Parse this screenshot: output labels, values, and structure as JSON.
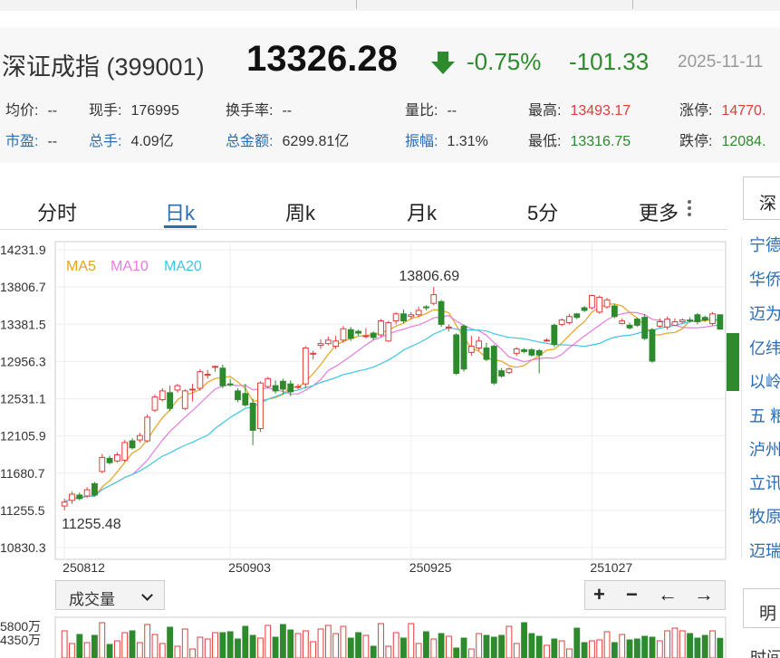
{
  "quote": {
    "name": "深证成指 (399001)",
    "price": "13326.28",
    "change_pct": "-0.75%",
    "change": "-101.33",
    "date": "2025-11-11",
    "up_color": "#e23c3c",
    "down_color": "#2d8a2d",
    "arrow_icon": "down-arrow-icon"
  },
  "stats": {
    "avg_price": {
      "label": "均价:",
      "value": "--"
    },
    "cur_hand": {
      "label": "现手:",
      "value": "176995"
    },
    "turnover": {
      "label": "换手率:",
      "value": "--"
    },
    "vol_ratio": {
      "label": "量比:",
      "value": "--"
    },
    "high": {
      "label": "最高:",
      "value": "13493.17"
    },
    "limit_up": {
      "label": "涨停:",
      "value": "14770."
    },
    "pe": {
      "label": "市盈:",
      "value": "--"
    },
    "total_hand": {
      "label": "总手:",
      "value": "4.09亿"
    },
    "amount": {
      "label": "总金额:",
      "value": "6299.81亿"
    },
    "amplitude": {
      "label": "振幅:",
      "value": "1.31%"
    },
    "low": {
      "label": "最低:",
      "value": "13316.75"
    },
    "limit_down": {
      "label": "跌停:",
      "value": "12084."
    }
  },
  "tabs": [
    "分时",
    "日k",
    "周k",
    "月k",
    "5分",
    "更多"
  ],
  "active_tab": "日k",
  "chart_data": {
    "type": "candlestick",
    "legend": [
      {
        "name": "MA5",
        "color": "#e8a21c"
      },
      {
        "name": "MA10",
        "color": "#e77be0"
      },
      {
        "name": "MA20",
        "color": "#3cc8e3"
      }
    ],
    "y_ticks": [
      "14231.9",
      "13806.7",
      "13381.5",
      "12956.3",
      "12531.1",
      "12105.9",
      "11680.7",
      "11255.5",
      "10830.3"
    ],
    "ylim": [
      10830.3,
      14231.9
    ],
    "x_ticks": [
      "250812",
      "250903",
      "250925",
      "251027"
    ],
    "max_label": "13806.69",
    "min_label": "11255.48",
    "candles": [
      [
        11305,
        11350,
        11255.48,
        11390
      ],
      [
        11370,
        11440,
        11330,
        11470
      ],
      [
        11430,
        11390,
        11370,
        11460
      ],
      [
        11420,
        11490,
        11400,
        11520
      ],
      [
        11560,
        11430,
        11410,
        11580
      ],
      [
        11700,
        11860,
        11680,
        11900
      ],
      [
        11850,
        11800,
        11780,
        11880
      ],
      [
        11820,
        11890,
        11800,
        11920
      ],
      [
        11830,
        12030,
        11810,
        12060
      ],
      [
        12050,
        11970,
        11950,
        12080
      ],
      [
        12060,
        12110,
        12030,
        12140
      ],
      [
        12050,
        12320,
        12030,
        12350
      ],
      [
        12400,
        12550,
        12380,
        12580
      ],
      [
        12520,
        12620,
        12500,
        12650
      ],
      [
        12600,
        12420,
        12390,
        12680
      ],
      [
        12630,
        12680,
        12600,
        12700
      ],
      [
        12420,
        12620,
        12400,
        12640
      ],
      [
        12640,
        12640,
        12500,
        12700
      ],
      [
        12650,
        12840,
        12620,
        12870
      ],
      [
        12800,
        12810,
        12760,
        12860
      ],
      [
        12890,
        12900,
        12840,
        12910
      ],
      [
        12880,
        12680,
        12650,
        12920
      ],
      [
        12700,
        12690,
        12670,
        12760
      ],
      [
        12620,
        12520,
        12490,
        12650
      ],
      [
        12590,
        12460,
        12440,
        12700
      ],
      [
        12480,
        12170,
        12000,
        12530
      ],
      [
        12190,
        12710,
        12150,
        12730
      ],
      [
        12670,
        12760,
        12650,
        12780
      ],
      [
        12680,
        12620,
        12590,
        12740
      ],
      [
        12730,
        12640,
        12580,
        12760
      ],
      [
        12700,
        12610,
        12560,
        12740
      ],
      [
        12660,
        12670,
        12640,
        12700
      ],
      [
        12700,
        13110,
        12650,
        13130
      ],
      [
        13050,
        13050,
        12980,
        13080
      ],
      [
        13140,
        13160,
        13100,
        13210
      ],
      [
        13160,
        13200,
        13140,
        13240
      ],
      [
        13130,
        13190,
        13100,
        13250
      ],
      [
        13200,
        13330,
        13170,
        13360
      ],
      [
        13320,
        13220,
        13190,
        13350
      ],
      [
        13300,
        13280,
        13250,
        13320
      ],
      [
        13240,
        13250,
        13220,
        13340
      ],
      [
        13280,
        13230,
        13200,
        13300
      ],
      [
        13260,
        13420,
        13240,
        13440
      ],
      [
        13190,
        13400,
        13180,
        13420
      ],
      [
        13420,
        13500,
        13380,
        13520
      ],
      [
        13500,
        13420,
        13390,
        13550
      ],
      [
        13470,
        13490,
        13440,
        13520
      ],
      [
        13490,
        13540,
        13460,
        13580
      ],
      [
        13580,
        13570,
        13540,
        13600
      ],
      [
        13620,
        13720,
        13600,
        13806.69
      ],
      [
        13640,
        13380,
        13350,
        13660
      ],
      [
        13340,
        13350,
        13300,
        13380
      ],
      [
        13260,
        12820,
        12800,
        13280
      ],
      [
        13360,
        12870,
        12840,
        13380
      ],
      [
        13060,
        13130,
        13020,
        13250
      ],
      [
        13110,
        13190,
        13080,
        13240
      ],
      [
        13110,
        12980,
        12960,
        13170
      ],
      [
        13130,
        12710,
        12690,
        13150
      ],
      [
        12850,
        12790,
        12770,
        12880
      ],
      [
        12830,
        12870,
        12810,
        12890
      ],
      [
        13050,
        13100,
        13020,
        13120
      ],
      [
        13090,
        13070,
        13050,
        13110
      ],
      [
        13090,
        13030,
        13010,
        13110
      ],
      [
        13080,
        13030,
        12820,
        13100
      ],
      [
        13200,
        13200,
        13180,
        13220
      ],
      [
        13370,
        13150,
        13120,
        13390
      ],
      [
        13380,
        13430,
        13360,
        13450
      ],
      [
        13400,
        13470,
        13380,
        13500
      ],
      [
        13500,
        13460,
        13440,
        13510
      ],
      [
        13570,
        13540,
        13520,
        13590
      ],
      [
        13570,
        13710,
        13550,
        13720
      ],
      [
        13520,
        13690,
        13500,
        13710
      ],
      [
        13580,
        13660,
        13560,
        13680
      ],
      [
        13590,
        13470,
        13450,
        13610
      ],
      [
        13390,
        13420,
        13380,
        13450
      ],
      [
        13370,
        13340,
        13320,
        13400
      ],
      [
        13440,
        13370,
        13350,
        13460
      ],
      [
        13460,
        13220,
        13200,
        13500
      ],
      [
        13320,
        12960,
        12940,
        13340
      ],
      [
        13360,
        13410,
        13340,
        13450
      ],
      [
        13350,
        13440,
        13320,
        13470
      ],
      [
        13370,
        13410,
        13360,
        13450
      ],
      [
        13410,
        13430,
        13390,
        13450
      ],
      [
        13430,
        13420,
        13400,
        13460
      ],
      [
        13490,
        13410,
        13380,
        13510
      ],
      [
        13460,
        13430,
        13410,
        13480
      ],
      [
        13390,
        13500,
        13370,
        13520
      ],
      [
        13490,
        13326.28,
        13316.75,
        13493.17
      ]
    ],
    "volume_ticks": [
      "5800万",
      "4350万"
    ]
  },
  "volume": {
    "select_label": "成交量",
    "controls": [
      "+",
      "−",
      "←",
      "→"
    ]
  },
  "side_panel": {
    "tab_label": "深",
    "items": [
      "宁德",
      "华侨",
      "迈为",
      "亿纬",
      "以岭",
      "五 粮",
      "泸州",
      "立讯",
      "牧原",
      "迈瑞"
    ],
    "tab2_label": "明",
    "bottom_label": "时间"
  }
}
